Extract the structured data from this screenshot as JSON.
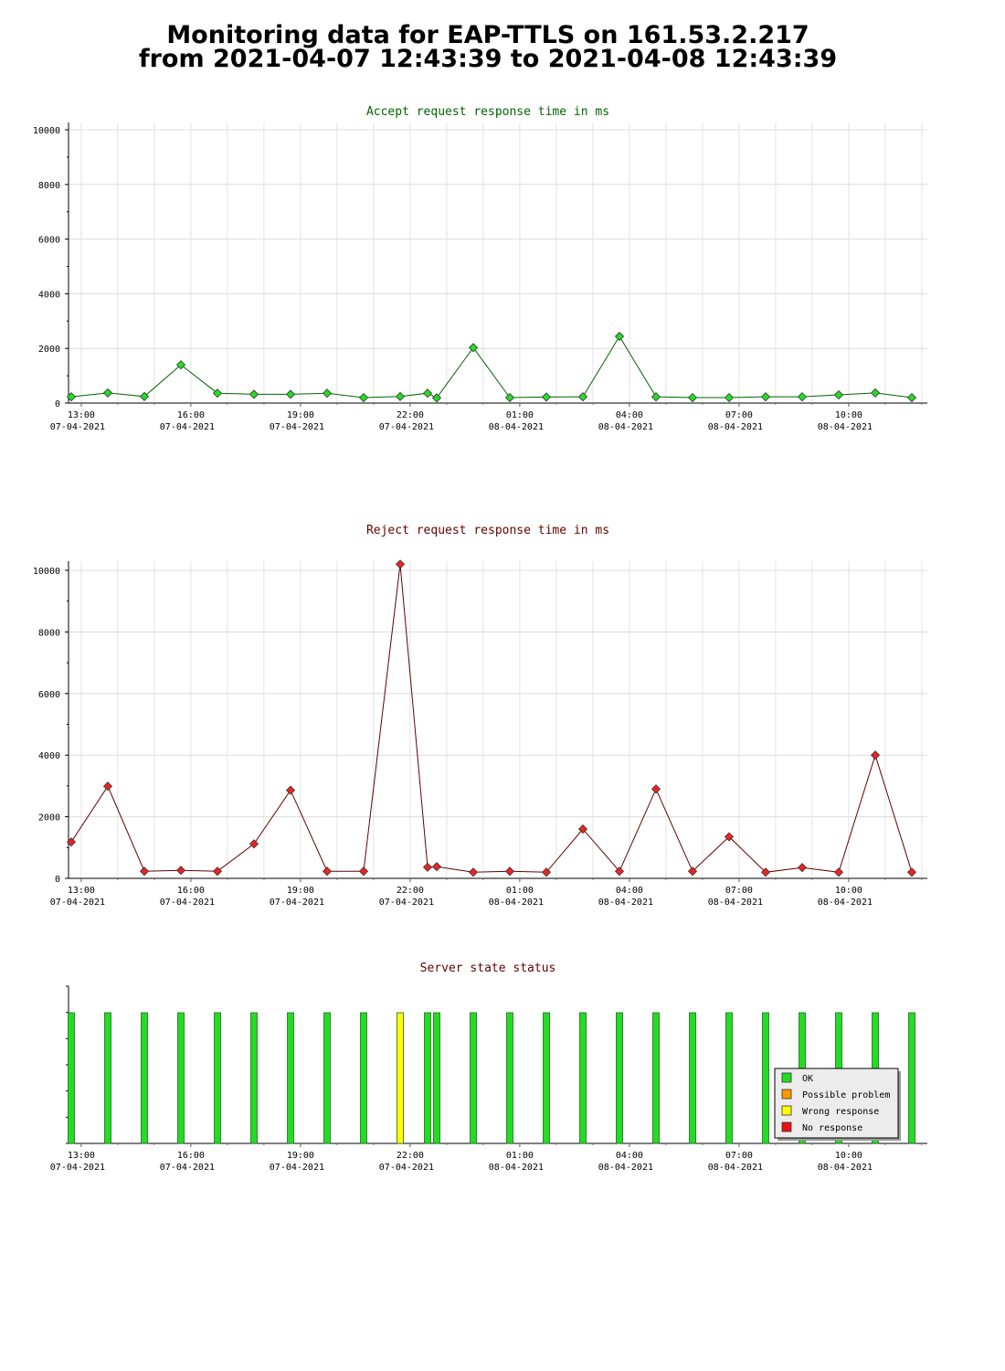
{
  "page": {
    "title_line1": "Monitoring data for EAP-TTLS on 161.53.2.217",
    "title_line2": "from 2021-04-07 12:43:39 to 2021-04-08 12:43:39"
  },
  "time_ticks": [
    {
      "time": "13:00",
      "date": "07-04-2021"
    },
    {
      "time": "16:00",
      "date": "07-04-2021"
    },
    {
      "time": "19:00",
      "date": "07-04-2021"
    },
    {
      "time": "22:00",
      "date": "07-04-2021"
    },
    {
      "time": "01:00",
      "date": "08-04-2021"
    },
    {
      "time": "04:00",
      "date": "08-04-2021"
    },
    {
      "time": "07:00",
      "date": "08-04-2021"
    },
    {
      "time": "10:00",
      "date": "08-04-2021"
    }
  ],
  "chart_data": [
    {
      "type": "line",
      "title": "Accept request response time in ms",
      "title_color": "#006400",
      "line_color": "#006400",
      "marker_color": "#22dd22",
      "ylim": [
        0,
        10000
      ],
      "y_ticks": [
        "0",
        "2000",
        "4000",
        "6000",
        "8000",
        "10000"
      ],
      "grid": true,
      "x_hours": [
        0.0,
        1.0,
        2.0,
        3.0,
        4.0,
        5.0,
        6.0,
        7.0,
        8.0,
        9.0,
        9.75,
        10.0,
        11.0,
        12.0,
        13.0,
        14.0,
        15.0,
        16.0,
        17.0,
        18.0,
        19.0,
        20.0,
        21.0,
        22.0,
        23.0
      ],
      "values": [
        230,
        370,
        240,
        1400,
        360,
        320,
        320,
        360,
        200,
        240,
        360,
        190,
        2030,
        200,
        220,
        230,
        2440,
        230,
        200,
        200,
        230,
        230,
        300,
        370,
        200
      ]
    },
    {
      "type": "line",
      "title": "Reject request response time in ms",
      "title_color": "#660000",
      "line_color": "#660000",
      "marker_color": "#ee2222",
      "ylim": [
        0,
        10000
      ],
      "y_ticks": [
        "0",
        "2000",
        "4000",
        "6000",
        "8000",
        "10000"
      ],
      "grid": true,
      "x_hours": [
        0.0,
        1.0,
        2.0,
        3.0,
        4.0,
        5.0,
        6.0,
        7.0,
        8.0,
        9.0,
        9.75,
        10.0,
        11.0,
        12.0,
        13.0,
        14.0,
        15.0,
        16.0,
        17.0,
        18.0,
        19.0,
        20.0,
        21.0,
        22.0,
        23.0
      ],
      "values": [
        1180,
        2990,
        230,
        260,
        230,
        1120,
        2860,
        230,
        230,
        10200,
        360,
        380,
        200,
        230,
        200,
        1600,
        230,
        2900,
        230,
        1350,
        200,
        350,
        200,
        4000,
        200
      ]
    },
    {
      "type": "bar",
      "title": "Server state status",
      "title_color": "#660000",
      "x_hours": [
        0.0,
        1.0,
        2.0,
        3.0,
        4.0,
        5.0,
        6.0,
        7.0,
        8.0,
        9.0,
        9.75,
        10.0,
        11.0,
        12.0,
        13.0,
        14.0,
        15.0,
        16.0,
        17.0,
        18.0,
        19.0,
        20.0,
        21.0,
        22.0,
        23.0
      ],
      "states": [
        "ok",
        "ok",
        "ok",
        "ok",
        "ok",
        "ok",
        "ok",
        "ok",
        "ok",
        "wrong",
        "ok",
        "ok",
        "ok",
        "ok",
        "ok",
        "ok",
        "ok",
        "ok",
        "ok",
        "ok",
        "ok",
        "ok",
        "ok",
        "ok",
        "ok"
      ],
      "legend_position": "bottom-right",
      "legend": [
        {
          "key": "ok",
          "label": "OK",
          "color": "#22dd22"
        },
        {
          "key": "possible",
          "label": "Possible problem",
          "color": "#ff9900"
        },
        {
          "key": "wrong",
          "label": "Wrong response",
          "color": "#ffff00"
        },
        {
          "key": "none",
          "label": "No response",
          "color": "#ee1111"
        }
      ]
    }
  ]
}
